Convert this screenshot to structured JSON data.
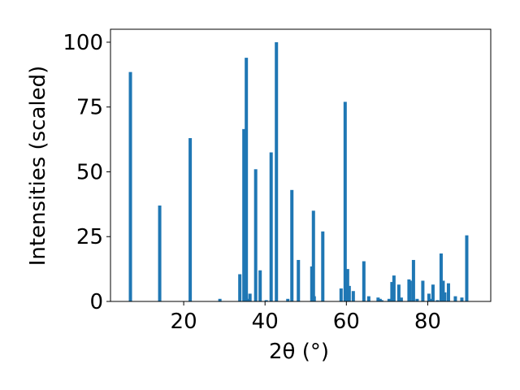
{
  "chart_data": {
    "type": "bar",
    "title": "",
    "xlabel": "2θ (°)",
    "ylabel": "Intensities (scaled)",
    "xlim": [
      2,
      95.5
    ],
    "ylim": [
      0,
      105
    ],
    "xticks": [
      20,
      40,
      60,
      80
    ],
    "yticks": [
      0,
      25,
      50,
      75,
      100
    ],
    "grid": false,
    "bar_color": "#1f77b4",
    "bar_width": 0.8,
    "x": [
      6.9,
      14.1,
      21.6,
      28.9,
      33.8,
      34.8,
      35.4,
      35.9,
      36.3,
      37.7,
      38.8,
      40.3,
      41.5,
      42.8,
      45.6,
      46.6,
      48.2,
      51.5,
      51.9,
      52.1,
      54.2,
      58.7,
      59.7,
      60.3,
      60.7,
      61.7,
      64.3,
      65.5,
      67.8,
      68.3,
      68.7,
      70.5,
      71.2,
      71.7,
      72.9,
      73.5,
      75.4,
      75.7,
      76.5,
      77.4,
      78.8,
      80.3,
      80.7,
      81.3,
      82.4,
      83.3,
      83.8,
      84.2,
      85.1,
      86.8,
      88.4,
      89.6
    ],
    "values": [
      88.5,
      37,
      63,
      1,
      10.5,
      66.5,
      94,
      1,
      3,
      51,
      12,
      0.5,
      57.5,
      100,
      1,
      43,
      16,
      13.5,
      35,
      2,
      27,
      5,
      77,
      12.5,
      6,
      4,
      15.5,
      2,
      1.5,
      1,
      0.5,
      1,
      7.5,
      10,
      6.5,
      1.5,
      8.5,
      8,
      16,
      1,
      8,
      3,
      1,
      6.5,
      0.5,
      18.5,
      8,
      3.5,
      7,
      2,
      1.5,
      25.5
    ]
  }
}
